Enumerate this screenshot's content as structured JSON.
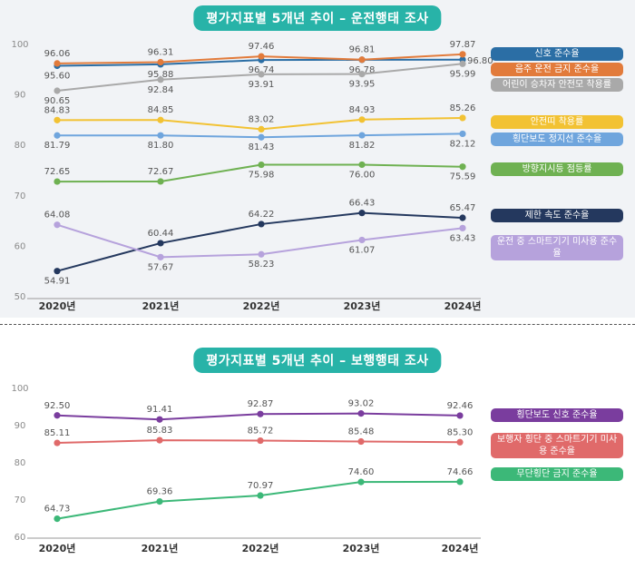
{
  "chart_data": [
    {
      "type": "line",
      "title": "평가지표별 5개년 추이 – 운전행태 조사",
      "categories": [
        "2020년",
        "2021년",
        "2022년",
        "2023년",
        "2024년"
      ],
      "ylim": [
        50,
        100
      ],
      "yticks": [
        50,
        60,
        70,
        80,
        90,
        100
      ],
      "grid": false,
      "legend": "right",
      "series": [
        {
          "name": "신호 준수율",
          "values": [
            95.6,
            95.88,
            96.74,
            96.78,
            96.8
          ],
          "labels": [
            "95.60",
            "95.88",
            "96.74",
            "96.78",
            "96.80"
          ],
          "color": "#2b6ea5"
        },
        {
          "name": "음주 운전 금지 준수율",
          "values": [
            96.06,
            96.31,
            97.46,
            96.81,
            97.87
          ],
          "labels": [
            "96.06",
            "96.31",
            "97.46",
            "96.81",
            "97.87"
          ],
          "color": "#e27b3b"
        },
        {
          "name": "어린이 승차자 안전모 착용률",
          "values": [
            90.65,
            92.84,
            93.91,
            93.95,
            95.99
          ],
          "labels": [
            "90.65",
            "92.84",
            "93.91",
            "93.95",
            "95.99"
          ],
          "color": "#a9a9a9"
        },
        {
          "name": "안전띠 착용률",
          "values": [
            84.83,
            84.85,
            83.02,
            84.93,
            85.26
          ],
          "labels": [
            "84.83",
            "84.85",
            "83.02",
            "84.93",
            "85.26"
          ],
          "color": "#f2c233"
        },
        {
          "name": "횡단보도 정지선 준수율",
          "values": [
            81.79,
            81.8,
            81.43,
            81.82,
            82.12
          ],
          "labels": [
            "81.79",
            "81.80",
            "81.43",
            "81.82",
            "82.12"
          ],
          "color": "#6fa5dd"
        },
        {
          "name": "방향지시등 점등률",
          "values": [
            72.65,
            72.67,
            75.98,
            76.0,
            75.59
          ],
          "labels": [
            "72.65",
            "72.67",
            "75.98",
            "76.00",
            "75.59"
          ],
          "color": "#6fb152"
        },
        {
          "name": "제한 속도 준수율",
          "values": [
            54.91,
            60.44,
            64.22,
            66.43,
            65.47
          ],
          "labels": [
            "54.91",
            "60.44",
            "64.22",
            "66.43",
            "65.47"
          ],
          "color": "#24385e"
        },
        {
          "name": "운전 중 스마트기기 미사용 준수율",
          "values": [
            64.08,
            57.67,
            58.23,
            61.07,
            63.43
          ],
          "labels": [
            "64.08",
            "57.67",
            "58.23",
            "61.07",
            "63.43"
          ],
          "color": "#b6a2dc"
        }
      ]
    },
    {
      "type": "line",
      "title": "평가지표별 5개년 추이 – 보행행태 조사",
      "categories": [
        "2020년",
        "2021년",
        "2022년",
        "2023년",
        "2024년"
      ],
      "ylim": [
        60,
        100
      ],
      "yticks": [
        60,
        70,
        80,
        90,
        100
      ],
      "grid": false,
      "legend": "right",
      "series": [
        {
          "name": "횡단보도 신호 준수율",
          "values": [
            92.5,
            91.41,
            92.87,
            93.02,
            92.46
          ],
          "labels": [
            "92.50",
            "91.41",
            "92.87",
            "93.02",
            "92.46"
          ],
          "color": "#7a3d9e"
        },
        {
          "name": "보행자 횡단 중 스마트기기 미사용 준수율",
          "values": [
            85.11,
            85.83,
            85.72,
            85.48,
            85.3
          ],
          "labels": [
            "85.11",
            "85.83",
            "85.72",
            "85.48",
            "85.30"
          ],
          "color": "#e06a6a"
        },
        {
          "name": "무단횡단 금지 준수율",
          "values": [
            64.73,
            69.36,
            70.97,
            74.6,
            74.66
          ],
          "labels": [
            "64.73",
            "69.36",
            "70.97",
            "74.60",
            "74.66"
          ],
          "color": "#3cb878"
        }
      ]
    }
  ]
}
